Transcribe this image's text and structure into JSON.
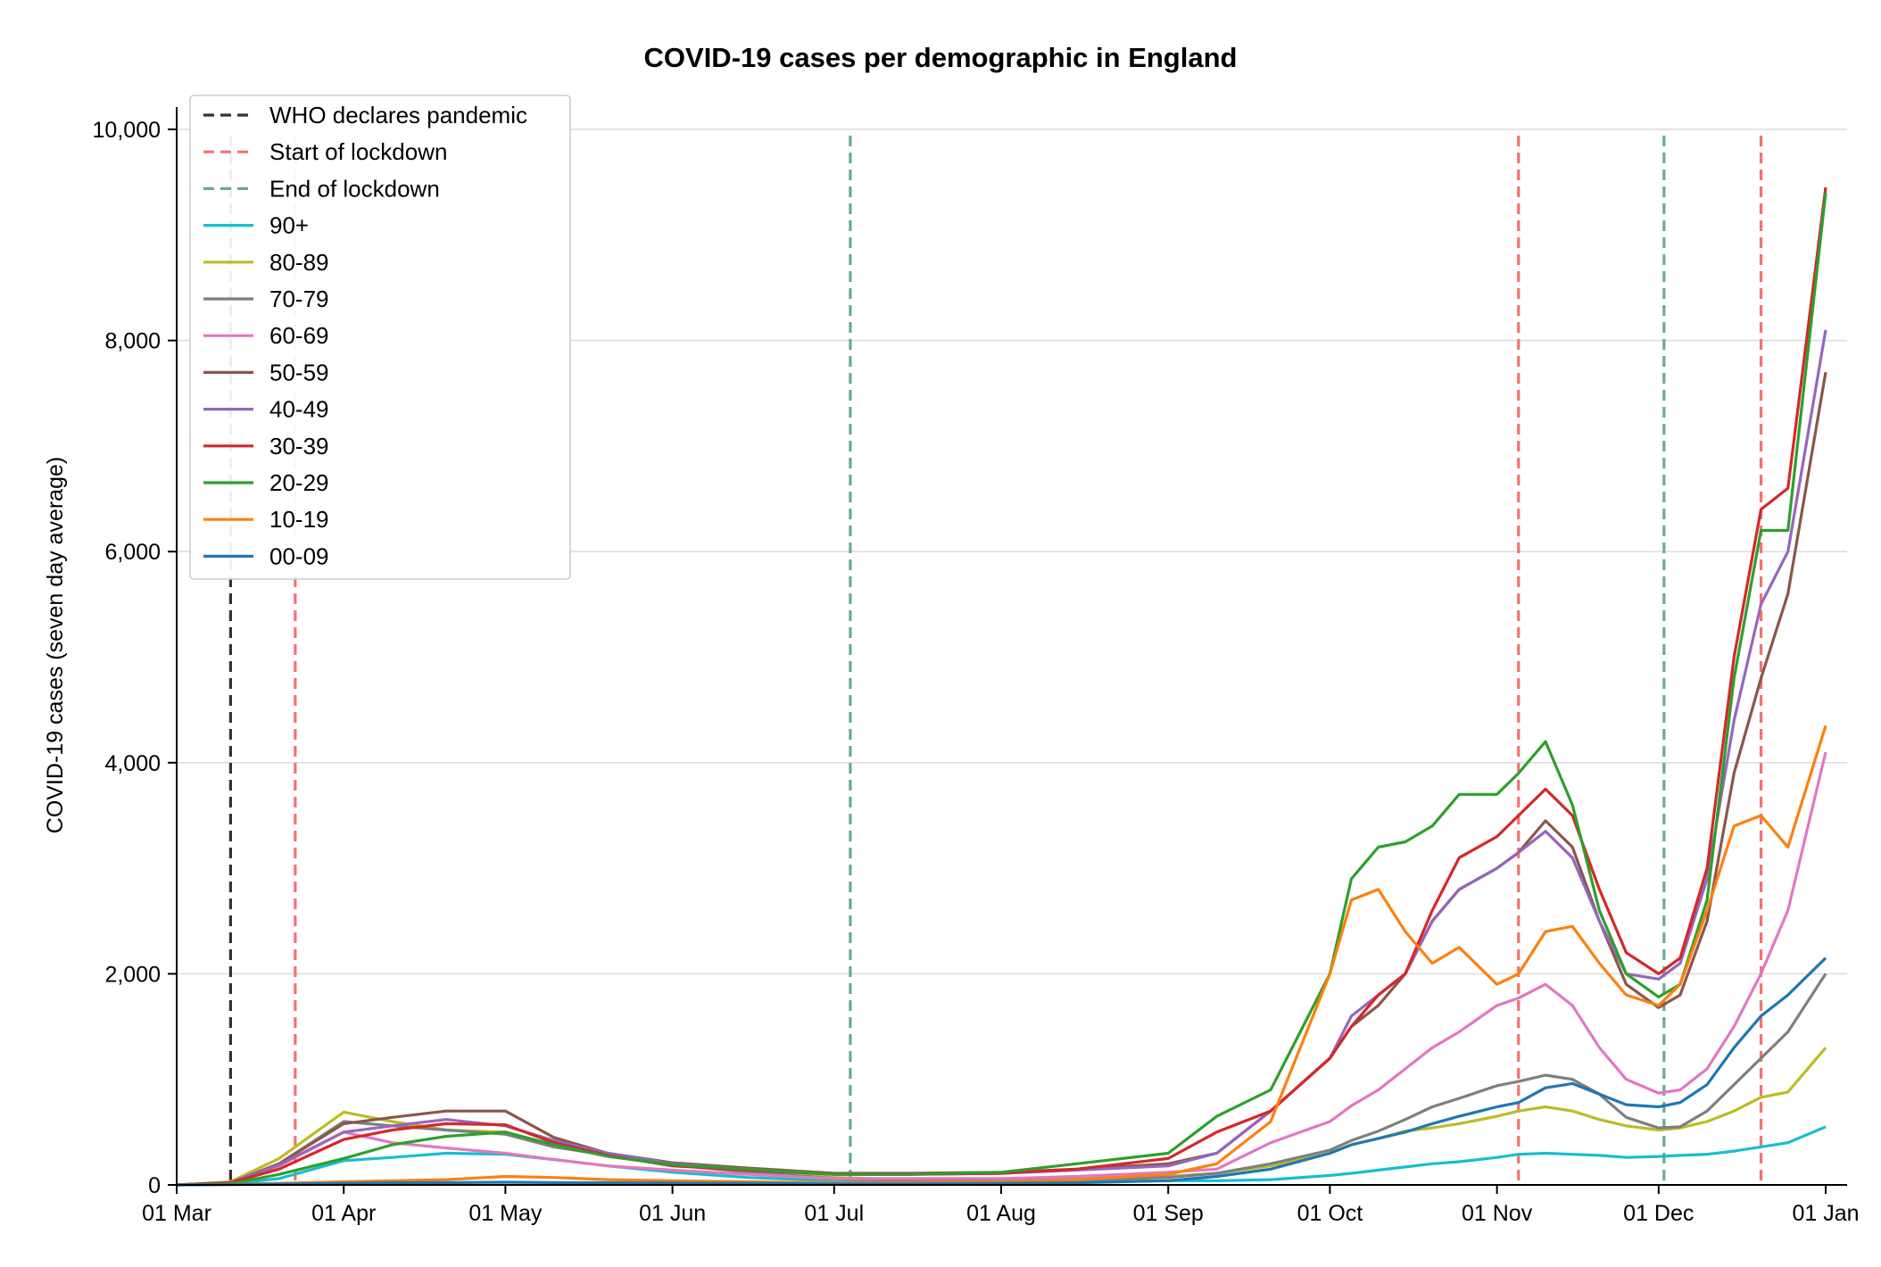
{
  "chart_data": {
    "type": "line",
    "title": "COVID-19 cases per demographic in England",
    "xlabel": "",
    "ylabel": "COVID-19 cases (seven day average)",
    "x_range": [
      "2020-03-01",
      "2021-01-01"
    ],
    "ylim": [
      0,
      10000
    ],
    "grid": "horizontal",
    "legend_position": "top-left",
    "x_ticks": [
      {
        "date": "2020-03-01",
        "label": "01 Mar"
      },
      {
        "date": "2020-04-01",
        "label": "01 Apr"
      },
      {
        "date": "2020-05-01",
        "label": "01 May"
      },
      {
        "date": "2020-06-01",
        "label": "01 Jun"
      },
      {
        "date": "2020-07-01",
        "label": "01 Jul"
      },
      {
        "date": "2020-08-01",
        "label": "01 Aug"
      },
      {
        "date": "2020-09-01",
        "label": "01 Sep"
      },
      {
        "date": "2020-10-01",
        "label": "01 Oct"
      },
      {
        "date": "2020-11-01",
        "label": "01 Nov"
      },
      {
        "date": "2020-12-01",
        "label": "01 Dec"
      },
      {
        "date": "2021-01-01",
        "label": "01 Jan"
      }
    ],
    "y_ticks": [
      {
        "value": 0,
        "label": "0"
      },
      {
        "value": 2000,
        "label": "2,000"
      },
      {
        "value": 4000,
        "label": "4,000"
      },
      {
        "value": 6000,
        "label": "6,000"
      },
      {
        "value": 8000,
        "label": "8,000"
      },
      {
        "value": 10000,
        "label": "10,000"
      }
    ],
    "events": [
      {
        "name": "WHO declares pandemic",
        "date": "2020-03-11",
        "color": "#333333",
        "kind": "who"
      },
      {
        "name": "Start of lockdown",
        "date": "2020-03-23",
        "color": "#f4726e",
        "kind": "start"
      },
      {
        "name": "End of lockdown",
        "date": "2020-07-04",
        "color": "#6aaa93",
        "kind": "end"
      },
      {
        "name": "Start of lockdown",
        "date": "2020-11-05",
        "color": "#f4726e",
        "kind": "start"
      },
      {
        "name": "End of lockdown",
        "date": "2020-12-02",
        "color": "#6aaa93",
        "kind": "end"
      },
      {
        "name": "Start of lockdown",
        "date": "2020-12-20",
        "color": "#f4726e",
        "kind": "start"
      }
    ],
    "legend": [
      {
        "name": "WHO declares pandemic",
        "color": "#333333",
        "style": "dashed"
      },
      {
        "name": "Start of lockdown",
        "color": "#f4726e",
        "style": "dashed"
      },
      {
        "name": "End of lockdown",
        "color": "#6aaa93",
        "style": "dashed"
      },
      {
        "name": "90+",
        "color": "#17becf",
        "style": "solid"
      },
      {
        "name": "80-89",
        "color": "#bcbd22",
        "style": "solid"
      },
      {
        "name": "70-79",
        "color": "#7f7f7f",
        "style": "solid"
      },
      {
        "name": "60-69",
        "color": "#e377c2",
        "style": "solid"
      },
      {
        "name": "50-59",
        "color": "#8c564b",
        "style": "solid"
      },
      {
        "name": "40-49",
        "color": "#9467bd",
        "style": "solid"
      },
      {
        "name": "30-39",
        "color": "#d62728",
        "style": "solid"
      },
      {
        "name": "20-29",
        "color": "#2ca02c",
        "style": "solid"
      },
      {
        "name": "10-19",
        "color": "#ff7f0e",
        "style": "solid"
      },
      {
        "name": "00-09",
        "color": "#1f77b4",
        "style": "solid"
      }
    ],
    "x": [
      "2020-03-01",
      "2020-03-11",
      "2020-03-20",
      "2020-04-01",
      "2020-04-10",
      "2020-04-20",
      "2020-05-01",
      "2020-05-10",
      "2020-05-20",
      "2020-06-01",
      "2020-06-15",
      "2020-07-01",
      "2020-07-15",
      "2020-08-01",
      "2020-08-15",
      "2020-09-01",
      "2020-09-10",
      "2020-09-20",
      "2020-10-01",
      "2020-10-05",
      "2020-10-10",
      "2020-10-15",
      "2020-10-20",
      "2020-10-25",
      "2020-11-01",
      "2020-11-05",
      "2020-11-10",
      "2020-11-15",
      "2020-11-20",
      "2020-11-25",
      "2020-12-01",
      "2020-12-05",
      "2020-12-10",
      "2020-12-15",
      "2020-12-20",
      "2020-12-25",
      "2021-01-01"
    ],
    "series": [
      {
        "name": "90+",
        "color": "#17becf",
        "values": [
          0,
          10,
          60,
          230,
          260,
          300,
          290,
          240,
          180,
          120,
          70,
          40,
          30,
          30,
          30,
          40,
          40,
          50,
          90,
          110,
          140,
          170,
          200,
          220,
          260,
          290,
          300,
          290,
          280,
          260,
          270,
          280,
          290,
          320,
          360,
          400,
          550
        ]
      },
      {
        "name": "80-89",
        "color": "#bcbd22",
        "values": [
          0,
          30,
          250,
          690,
          600,
          520,
          500,
          360,
          290,
          200,
          130,
          70,
          50,
          50,
          60,
          80,
          110,
          180,
          300,
          380,
          440,
          510,
          540,
          580,
          650,
          700,
          740,
          700,
          620,
          560,
          520,
          540,
          600,
          700,
          830,
          880,
          1300
        ]
      },
      {
        "name": "70-79",
        "color": "#7f7f7f",
        "values": [
          0,
          20,
          200,
          600,
          560,
          520,
          480,
          360,
          280,
          190,
          120,
          60,
          40,
          40,
          50,
          70,
          110,
          200,
          330,
          420,
          510,
          620,
          740,
          820,
          940,
          980,
          1040,
          1000,
          860,
          640,
          540,
          550,
          700,
          950,
          1200,
          1450,
          2000
        ]
      },
      {
        "name": "60-69",
        "color": "#e377c2",
        "values": [
          0,
          20,
          180,
          500,
          400,
          350,
          300,
          240,
          180,
          140,
          100,
          60,
          60,
          60,
          80,
          120,
          150,
          400,
          600,
          750,
          900,
          1100,
          1300,
          1450,
          1700,
          1770,
          1900,
          1700,
          1300,
          1000,
          870,
          900,
          1100,
          1500,
          2000,
          2600,
          4100
        ]
      },
      {
        "name": "50-59",
        "color": "#8c564b",
        "values": [
          0,
          20,
          200,
          580,
          640,
          700,
          700,
          450,
          300,
          210,
          160,
          110,
          110,
          120,
          150,
          200,
          300,
          700,
          1200,
          1500,
          1700,
          2000,
          2500,
          2800,
          3000,
          3150,
          3450,
          3200,
          2500,
          1900,
          1680,
          1800,
          2500,
          3900,
          4800,
          5600,
          7700
        ]
      },
      {
        "name": "40-49",
        "color": "#9467bd",
        "values": [
          0,
          20,
          190,
          500,
          560,
          620,
          560,
          420,
          300,
          200,
          150,
          100,
          100,
          110,
          140,
          180,
          300,
          700,
          1200,
          1600,
          1800,
          2000,
          2500,
          2800,
          3000,
          3150,
          3350,
          3100,
          2500,
          2000,
          1950,
          2100,
          2900,
          4400,
          5500,
          6000,
          8100
        ]
      },
      {
        "name": "30-39",
        "color": "#d62728",
        "values": [
          0,
          20,
          150,
          430,
          520,
          580,
          570,
          400,
          280,
          180,
          140,
          100,
          100,
          110,
          150,
          250,
          500,
          700,
          1200,
          1500,
          1800,
          2000,
          2600,
          3100,
          3300,
          3500,
          3750,
          3500,
          2800,
          2200,
          2000,
          2150,
          3000,
          5000,
          6400,
          6600,
          9450
        ]
      },
      {
        "name": "20-29",
        "color": "#2ca02c",
        "values": [
          0,
          10,
          100,
          250,
          380,
          460,
          500,
          380,
          270,
          190,
          150,
          100,
          100,
          120,
          200,
          300,
          650,
          900,
          2000,
          2900,
          3200,
          3250,
          3400,
          3700,
          3700,
          3900,
          4200,
          3600,
          2600,
          2000,
          1780,
          1900,
          2700,
          4800,
          6200,
          6200,
          9400
        ]
      },
      {
        "name": "10-19",
        "color": "#ff7f0e",
        "values": [
          0,
          5,
          15,
          30,
          40,
          50,
          80,
          70,
          50,
          40,
          30,
          20,
          20,
          30,
          50,
          100,
          200,
          600,
          2000,
          2700,
          2800,
          2400,
          2100,
          2250,
          1900,
          2000,
          2400,
          2450,
          2100,
          1800,
          1700,
          1900,
          2600,
          3400,
          3500,
          3200,
          4350
        ]
      },
      {
        "name": "00-09",
        "color": "#1f77b4",
        "values": [
          0,
          3,
          8,
          15,
          20,
          22,
          25,
          22,
          20,
          18,
          15,
          10,
          10,
          15,
          20,
          40,
          80,
          150,
          300,
          380,
          440,
          500,
          580,
          650,
          740,
          780,
          920,
          960,
          860,
          760,
          740,
          780,
          950,
          1300,
          1600,
          1800,
          2150
        ]
      }
    ]
  }
}
